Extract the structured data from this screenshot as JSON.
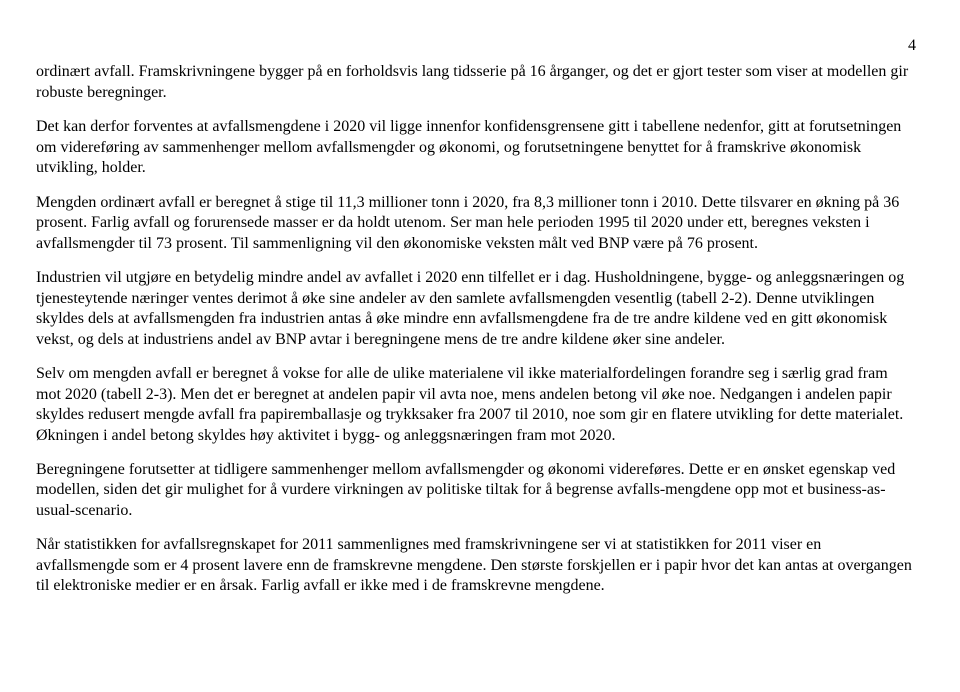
{
  "page_number": "4",
  "paragraphs": [
    "ordinært avfall. Framskrivningene bygger på en forholdsvis lang tidsserie på 16 årganger, og det er gjort tester som viser at modellen gir robuste beregninger.",
    "Det kan derfor forventes at avfallsmengdene i 2020 vil ligge innenfor konfidensgrensene gitt i tabellene nedenfor, gitt at forutsetningen om videreføring av sammenhenger mellom avfallsmengder og økonomi, og forutsetningene benyttet for å framskrive økonomisk utvikling, holder.",
    "Mengden ordinært avfall er beregnet å stige til 11,3 millioner tonn i 2020, fra 8,3 millioner tonn i 2010. Dette tilsvarer en økning på 36 prosent. Farlig avfall og forurensede masser er da holdt utenom. Ser man hele perioden 1995 til 2020 under ett, beregnes veksten i avfallsmengder til 73 prosent. Til sammenligning vil den økonomiske veksten målt ved BNP være på 76 prosent.",
    "Industrien vil utgjøre en betydelig mindre andel av avfallet i 2020 enn tilfellet er i dag. Husholdningene, bygge- og anleggsnæringen og tjenesteytende næringer ventes derimot å øke sine andeler av den samlete avfallsmengden vesentlig (tabell 2-2). Denne utviklingen skyldes dels at avfallsmengden fra industrien antas å øke mindre enn avfallsmengdene fra de tre andre kildene ved en gitt økonomisk vekst, og dels at industriens andel av BNP avtar i beregningene mens de tre andre kildene øker sine andeler.",
    "Selv om mengden avfall er beregnet å vokse for alle de ulike materialene vil ikke materialfordelingen forandre seg i særlig grad fram mot 2020 (tabell 2-3). Men det er beregnet at andelen papir vil avta noe, mens andelen betong vil øke noe. Nedgangen i andelen papir skyldes redusert mengde avfall fra papiremballasje og trykksaker fra 2007 til 2010, noe som gir en flatere utvikling for dette materialet. Økningen i andel betong skyldes høy aktivitet i bygg- og anleggsnæringen fram mot 2020.",
    "Beregningene forutsetter at tidligere sammenhenger mellom avfallsmengder og økonomi videreføres. Dette er en ønsket egenskap ved modellen, siden det gir mulighet for å vurdere virkningen av politiske tiltak for å begrense avfalls-mengdene opp mot et business-as-usual-scenario.",
    "Når statistikken for avfallsregnskapet for 2011 sammenlignes med framskrivningene ser vi at statistikken for 2011 viser en avfallsmengde som er 4 prosent lavere enn de framskrevne mengdene. Den største forskjellen er i papir hvor det kan antas at overgangen til elektroniske medier er en årsak. Farlig avfall er ikke med i de framskrevne mengdene."
  ]
}
